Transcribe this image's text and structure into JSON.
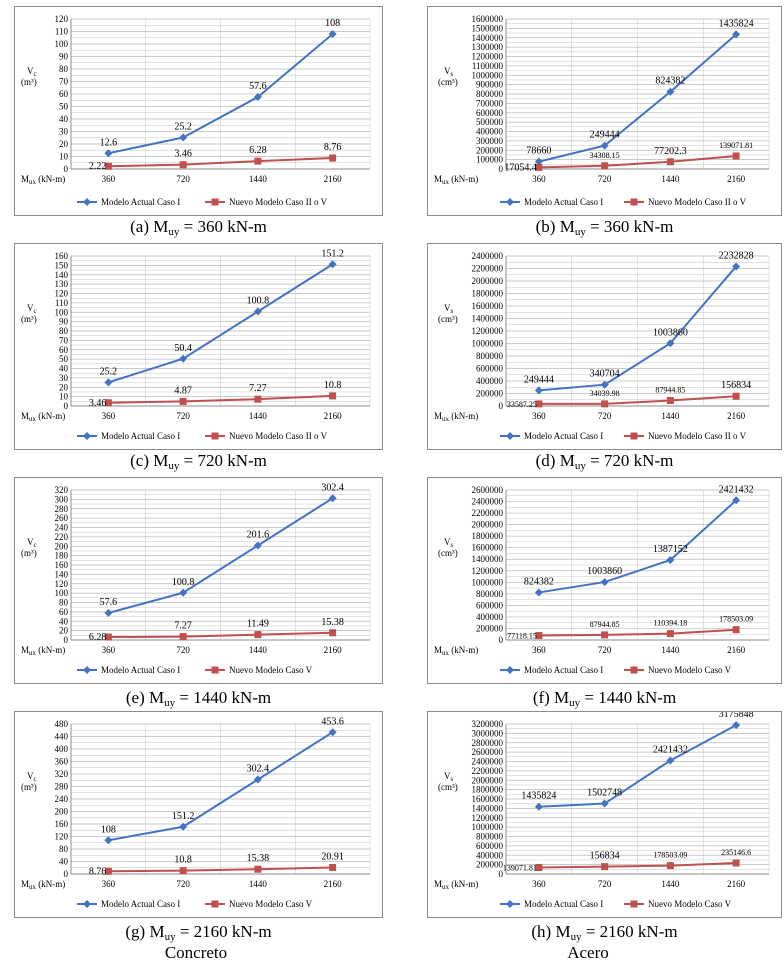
{
  "colors": {
    "actual": "#4472c4",
    "nuevo": "#c0504d",
    "grid": "#b9b9b9",
    "border": "#8c8c8c"
  },
  "footer": {
    "left": "Concreto",
    "right": "Acero"
  },
  "chart_data": [
    {
      "type": "line",
      "id": "a",
      "caption": {
        "prefix": "(a) M",
        "sub": "uy",
        "suffix": " = 360 kN-m"
      },
      "ylabel": {
        "main": "V",
        "sub": "c",
        "unit": "(m³)"
      },
      "xlabel": "M",
      "xlabel_sub": "ux",
      "xlabel_unit": " (kN-m)",
      "categories": [
        "360",
        "720",
        "1440",
        "2160"
      ],
      "ylim": [
        0,
        120
      ],
      "ystep": 10,
      "yticks": [
        "0",
        "10",
        "20",
        "30",
        "40",
        "50",
        "60",
        "70",
        "80",
        "90",
        "100",
        "110",
        "120"
      ],
      "series": [
        {
          "name": "Modelo Actual Caso I",
          "values": [
            12.6,
            25.2,
            57.6,
            108
          ],
          "labels": [
            "12.6",
            "25.2",
            "57.6",
            "108"
          ]
        },
        {
          "name": "Nuevo Modelo Caso II o V",
          "values": [
            2.22,
            3.46,
            6.28,
            8.76
          ],
          "labels": [
            "2.22",
            "3.46",
            "6.28",
            "8.76"
          ]
        }
      ]
    },
    {
      "type": "line",
      "id": "b",
      "caption": {
        "prefix": "(b) M",
        "sub": "uy",
        "suffix": " = 360 kN-m"
      },
      "ylabel": {
        "main": "V",
        "sub": "s",
        "unit": "(cm³)"
      },
      "xlabel": "M",
      "xlabel_sub": "ux",
      "xlabel_unit": " (kN-m)",
      "categories": [
        "360",
        "720",
        "1440",
        "2160"
      ],
      "ylim": [
        0,
        1600000
      ],
      "ystep": 100000,
      "yticks": [
        "0",
        "100000",
        "200000",
        "300000",
        "400000",
        "500000",
        "600000",
        "700000",
        "800000",
        "900000",
        "1000000",
        "1100000",
        "1200000",
        "1300000",
        "1400000",
        "1500000",
        "1600000"
      ],
      "series": [
        {
          "name": "Modelo Actual Caso I",
          "values": [
            78660,
            249444,
            824382,
            1435824
          ],
          "labels": [
            "78660",
            "249444",
            "824382",
            "1435824"
          ]
        },
        {
          "name": "Nuevo Modelo Caso II o V",
          "values": [
            17054.4,
            34308.15,
            77202.3,
            139071.81
          ],
          "labels": [
            "17054.4",
            "34308.15",
            "77202.3",
            "139071.81"
          ]
        }
      ]
    },
    {
      "type": "line",
      "id": "c",
      "caption": {
        "prefix": "(c) M",
        "sub": "uy",
        "suffix": " = 720 kN-m"
      },
      "ylabel": {
        "main": "V",
        "sub": "c",
        "unit": "(m³)"
      },
      "xlabel": "M",
      "xlabel_sub": "ux",
      "xlabel_unit": " (kN-m)",
      "categories": [
        "360",
        "720",
        "1440",
        "2160"
      ],
      "ylim": [
        0,
        160
      ],
      "ystep": 10,
      "yticks": [
        "0",
        "10",
        "20",
        "30",
        "40",
        "50",
        "60",
        "70",
        "80",
        "90",
        "100",
        "110",
        "120",
        "130",
        "140",
        "150",
        "160"
      ],
      "series": [
        {
          "name": "Modelo Actual Caso I",
          "values": [
            25.2,
            50.4,
            100.8,
            151.2
          ],
          "labels": [
            "25.2",
            "50.4",
            "100.8",
            "151.2"
          ]
        },
        {
          "name": "Nuevo Modelo Caso II o V",
          "values": [
            3.46,
            4.87,
            7.27,
            10.8
          ],
          "labels": [
            "3.46",
            "4.87",
            "7.27",
            "10.8"
          ]
        }
      ]
    },
    {
      "type": "line",
      "id": "d",
      "caption": {
        "prefix": "(d) M",
        "sub": "uy",
        "suffix": " = 720 kN-m"
      },
      "ylabel": {
        "main": "V",
        "sub": "s",
        "unit": "(cm³)"
      },
      "xlabel": "M",
      "xlabel_sub": "ux",
      "xlabel_unit": " (kN-m)",
      "categories": [
        "360",
        "720",
        "1440",
        "2160"
      ],
      "ylim": [
        0,
        2400000
      ],
      "ystep": 200000,
      "yticks": [
        "0",
        "200000",
        "400000",
        "600000",
        "800000",
        "1000000",
        "1200000",
        "1400000",
        "1600000",
        "1800000",
        "2000000",
        "2200000",
        "2400000"
      ],
      "series": [
        {
          "name": "Modelo Actual Caso I",
          "values": [
            249444,
            340704,
            1003860,
            2232828
          ],
          "labels": [
            "249444",
            "340704",
            "1003860",
            "2232828"
          ]
        },
        {
          "name": "Nuevo Modelo Caso II o V",
          "values": [
            33587.25,
            34039.98,
            87944.85,
            156834
          ],
          "labels": [
            "33587.25",
            "34039.98",
            "87944.85",
            "156834"
          ]
        }
      ]
    },
    {
      "type": "line",
      "id": "e",
      "caption": {
        "prefix": "(e) M",
        "sub": "uy",
        "suffix": " = 1440 kN-m"
      },
      "ylabel": {
        "main": "V",
        "sub": "c",
        "unit": "(m³)"
      },
      "xlabel": "M",
      "xlabel_sub": "ux",
      "xlabel_unit": " (kN-m)",
      "categories": [
        "360",
        "720",
        "1440",
        "2160"
      ],
      "ylim": [
        0,
        320
      ],
      "ystep": 20,
      "yticks": [
        "0",
        "20",
        "40",
        "60",
        "80",
        "100",
        "120",
        "140",
        "160",
        "180",
        "200",
        "220",
        "240",
        "260",
        "280",
        "300",
        "320"
      ],
      "series": [
        {
          "name": "Modelo Actual Caso I",
          "values": [
            57.6,
            100.8,
            201.6,
            302.4
          ],
          "labels": [
            "57.6",
            "100.8",
            "201.6",
            "302.4"
          ]
        },
        {
          "name": "Nuevo Modelo Caso V",
          "values": [
            6.28,
            7.27,
            11.49,
            15.38
          ],
          "labels": [
            "6.28",
            "7.27",
            "11.49",
            "15.38"
          ]
        }
      ]
    },
    {
      "type": "line",
      "id": "f",
      "caption": {
        "prefix": "(f) M",
        "sub": "uy",
        "suffix": " = 1440 kN-m"
      },
      "ylabel": {
        "main": "V",
        "sub": "s",
        "unit": "(cm³)"
      },
      "xlabel": "M",
      "xlabel_sub": "ux",
      "xlabel_unit": " (kN-m)",
      "categories": [
        "360",
        "720",
        "1440",
        "2160"
      ],
      "ylim": [
        0,
        2600000
      ],
      "ystep": 200000,
      "yticks": [
        "0",
        "200000",
        "400000",
        "600000",
        "800000",
        "1000000",
        "1200000",
        "1400000",
        "1600000",
        "1800000",
        "2000000",
        "2200000",
        "2400000",
        "2600000"
      ],
      "series": [
        {
          "name": "Modelo Actual Caso I",
          "values": [
            824382,
            1003860,
            1387152,
            2421432
          ],
          "labels": [
            "824382",
            "1003860",
            "1387152",
            "2421432"
          ]
        },
        {
          "name": "Nuevo Modelo Caso V",
          "values": [
            77118.15,
            87944.85,
            110394.18,
            178503.09
          ],
          "labels": [
            "77118.15",
            "87944.85",
            "110394.18",
            "178503.09"
          ]
        }
      ]
    },
    {
      "type": "line",
      "id": "g",
      "caption": {
        "prefix": "(g) M",
        "sub": "uy",
        "suffix": " = 2160 kN-m"
      },
      "ylabel": {
        "main": "V",
        "sub": "c",
        "unit": "(m³)"
      },
      "xlabel": "M",
      "xlabel_sub": "ux",
      "xlabel_unit": " (kN-m)",
      "categories": [
        "360",
        "720",
        "1440",
        "2160"
      ],
      "ylim": [
        0,
        480
      ],
      "ystep": 40,
      "yticks": [
        "0",
        "40",
        "80",
        "120",
        "160",
        "200",
        "240",
        "280",
        "320",
        "360",
        "400",
        "440",
        "480"
      ],
      "series": [
        {
          "name": "Modelo Actual Caso I",
          "values": [
            108,
            151.2,
            302.4,
            453.6
          ],
          "labels": [
            "108",
            "151.2",
            "302.4",
            "453.6"
          ]
        },
        {
          "name": "Nuevo Modelo Caso V",
          "values": [
            8.76,
            10.8,
            15.38,
            20.91
          ],
          "labels": [
            "8.76",
            "10.8",
            "15.38",
            "20.91"
          ]
        }
      ]
    },
    {
      "type": "line",
      "id": "h",
      "caption": {
        "prefix": "(h) M",
        "sub": "uy",
        "suffix": " = 2160 kN-m"
      },
      "ylabel": {
        "main": "V",
        "sub": "s",
        "unit": "(cm³)"
      },
      "xlabel": "M",
      "xlabel_sub": "ux",
      "xlabel_unit": " (kN-m)",
      "categories": [
        "360",
        "720",
        "1440",
        "2160"
      ],
      "ylim": [
        0,
        3200000
      ],
      "ystep": 200000,
      "yticks": [
        "0",
        "200000",
        "400000",
        "600000",
        "800000",
        "1000000",
        "1200000",
        "1400000",
        "1600000",
        "1800000",
        "2000000",
        "2200000",
        "2400000",
        "2600000",
        "2800000",
        "3000000",
        "3200000"
      ],
      "series": [
        {
          "name": "Modelo Actual Caso I",
          "values": [
            1435824,
            1502748,
            2421432,
            3175848
          ],
          "labels": [
            "1435824",
            "1502748",
            "2421432",
            "3175848"
          ]
        },
        {
          "name": "Nuevo Modelo Caso V",
          "values": [
            139071.81,
            156834,
            178503.09,
            235146.6
          ],
          "labels": [
            "139071.81",
            "156834",
            "178503.09",
            "235146.6"
          ]
        }
      ]
    }
  ]
}
